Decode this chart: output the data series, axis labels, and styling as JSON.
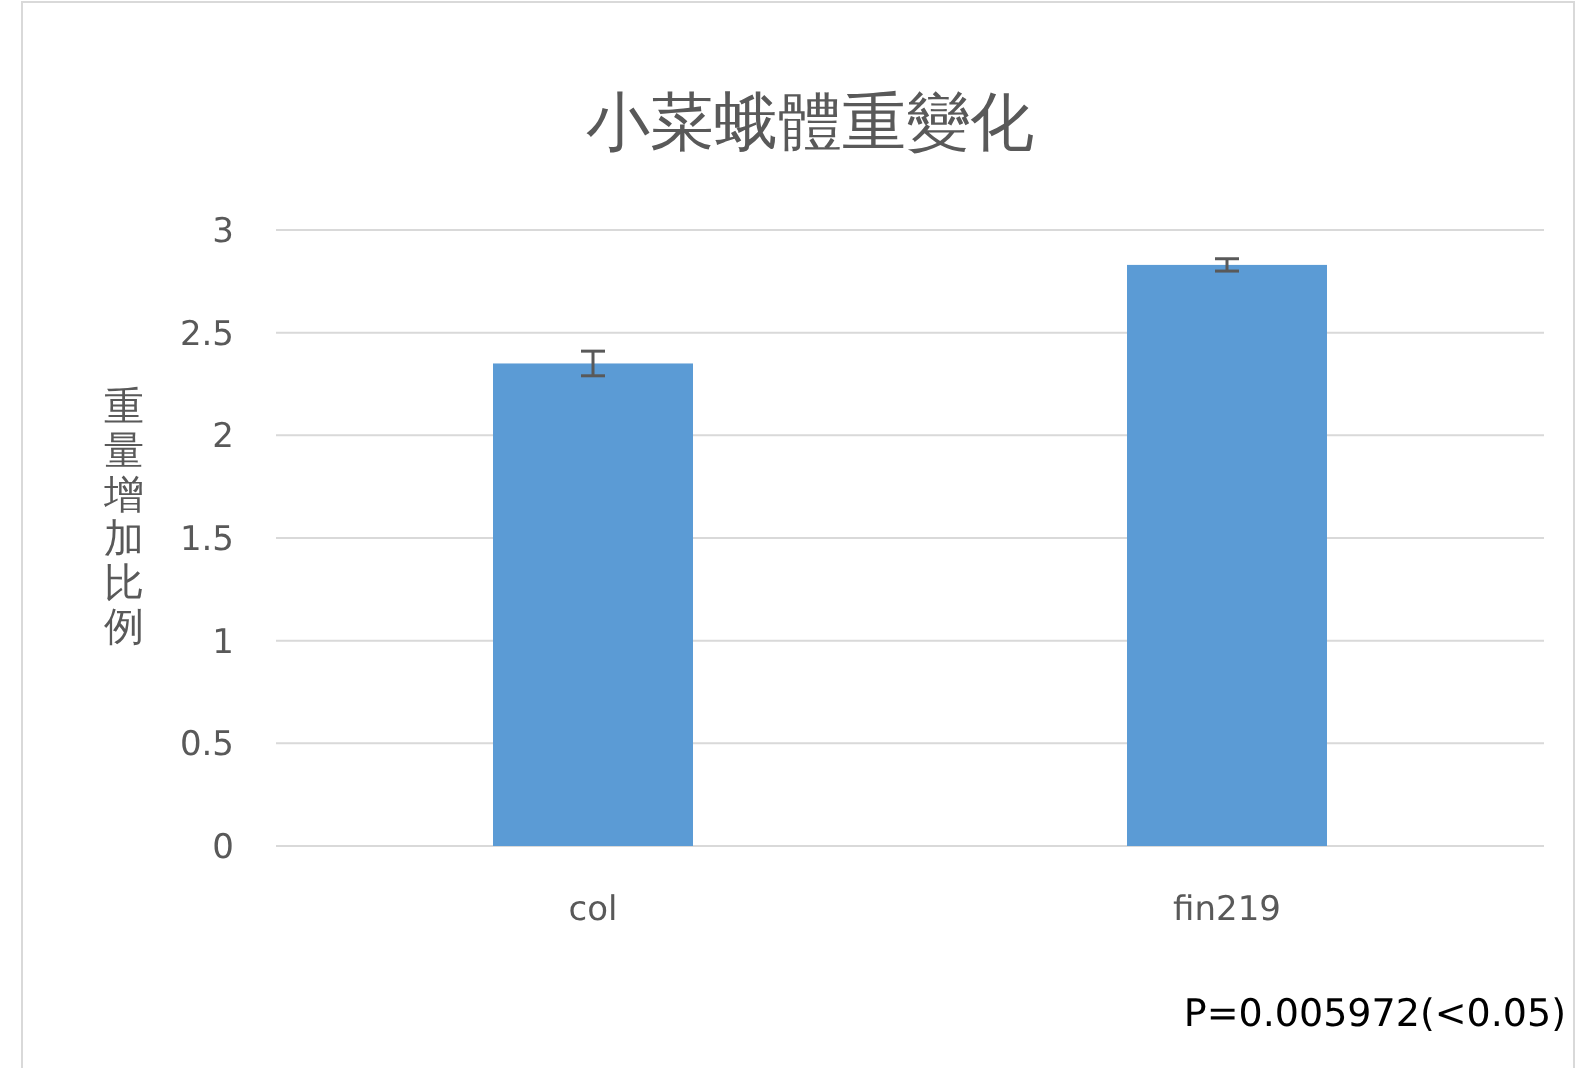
{
  "chart_data": {
    "type": "bar",
    "title": "小菜蛾體重變化",
    "ylabel": "重量增加比例",
    "categories": [
      "col",
      "fin219"
    ],
    "values": [
      2.35,
      2.83
    ],
    "errors": [
      0.06,
      0.03
    ],
    "color": "#5b9bd5",
    "ylim": [
      0,
      3
    ],
    "yticks": [
      0,
      0.5,
      1,
      1.5,
      2,
      2.5,
      3
    ],
    "grid": "y",
    "annotations": [
      "P=0.005972(<0.05)"
    ]
  }
}
